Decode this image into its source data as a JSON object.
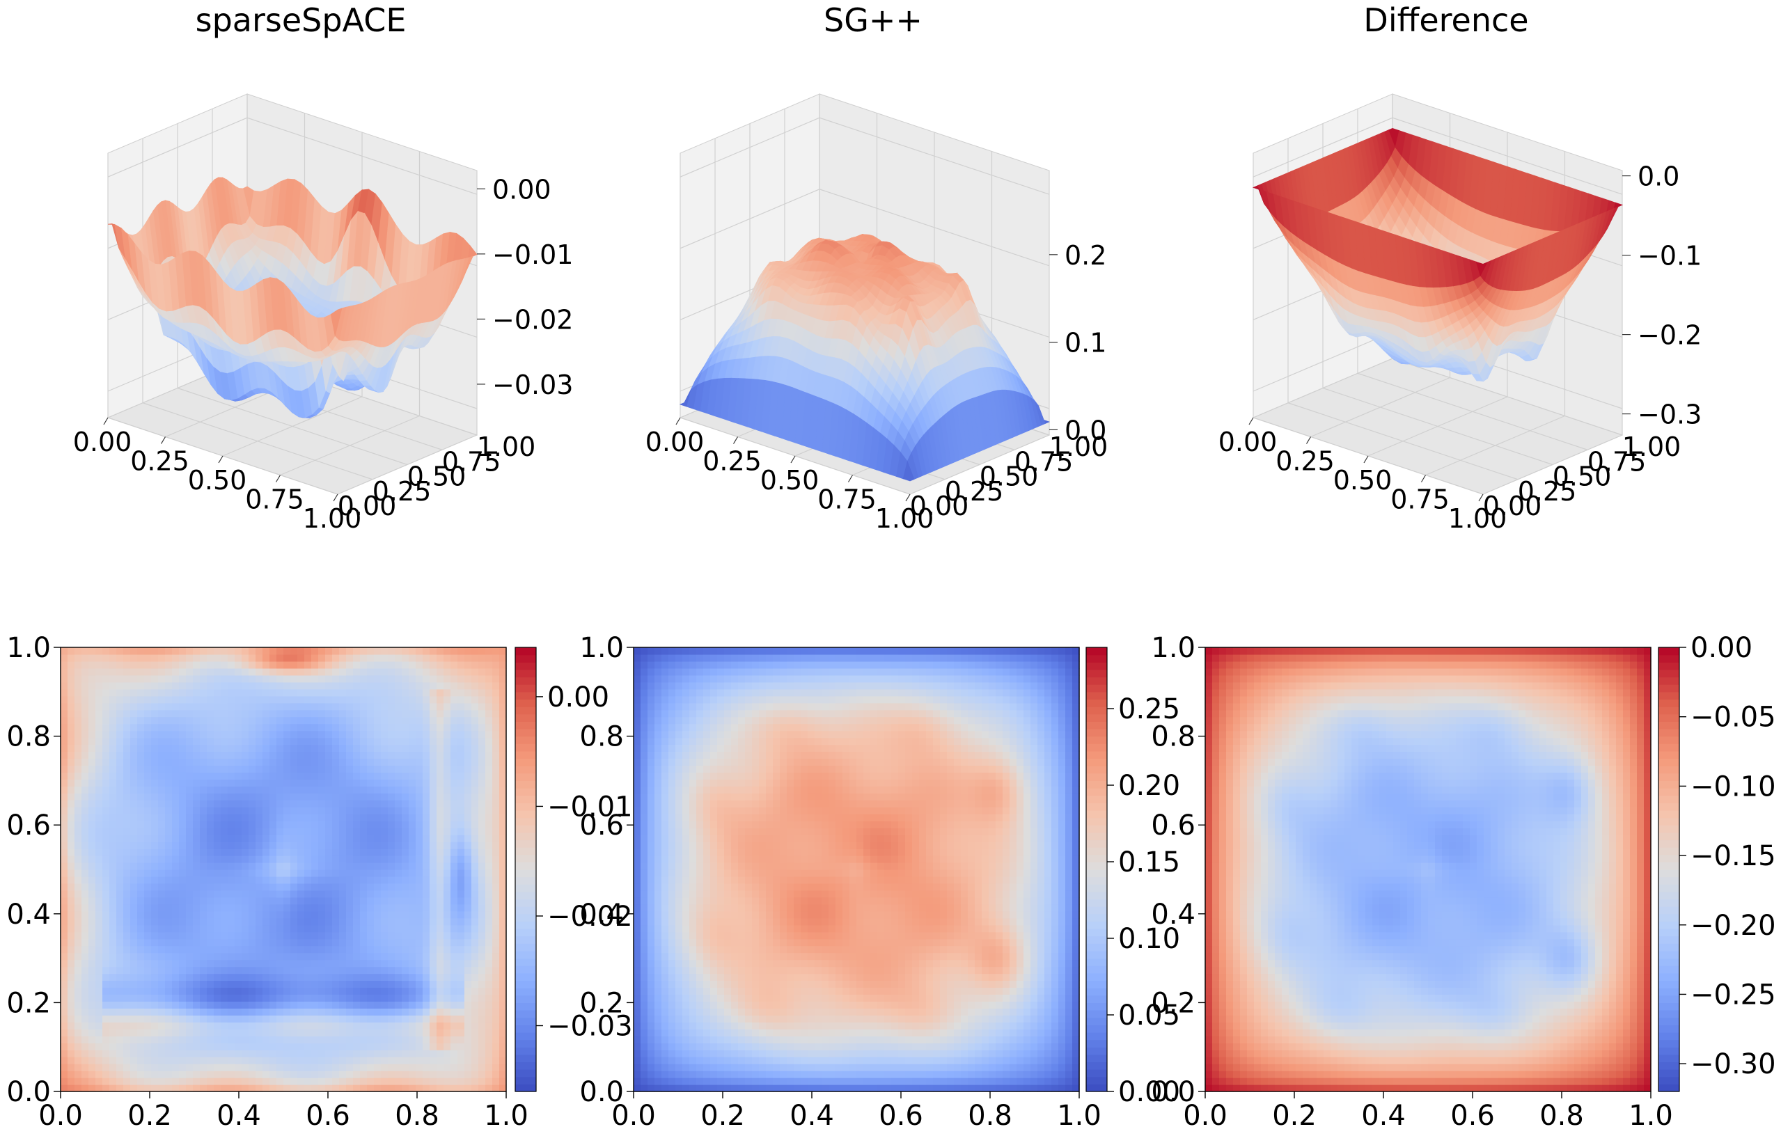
{
  "chart_data": [
    {
      "type": "surface",
      "title": "sparseSpACE",
      "x": {
        "ticks": [
          "0.00",
          "0.25",
          "0.50",
          "0.75",
          "1.00"
        ],
        "range": [
          0,
          1
        ]
      },
      "y": {
        "ticks": [
          "0.00",
          "0.25",
          "0.50",
          "0.75",
          "1.00"
        ],
        "range": [
          0,
          1
        ]
      },
      "z": {
        "ticks": [
          "0.00",
          "−0.01",
          "−0.02",
          "−0.03"
        ],
        "range": [
          -0.037,
          0.002
        ]
      },
      "surface": {
        "kind": "sparse",
        "min": -0.037,
        "max": 0.002
      },
      "colormap": "coolwarm"
    },
    {
      "type": "surface",
      "title": "SG++",
      "x": {
        "ticks": [
          "0.00",
          "0.25",
          "0.50",
          "0.75",
          "1.00"
        ],
        "range": [
          0,
          1
        ]
      },
      "y": {
        "ticks": [
          "0.00",
          "0.25",
          "0.50",
          "0.75",
          "1.00"
        ],
        "range": [
          0,
          1
        ]
      },
      "z": {
        "ticks": [
          "0.0",
          "0.1",
          "0.2"
        ],
        "range": [
          0,
          0.29
        ]
      },
      "surface": {
        "kind": "sgpp",
        "min": 0,
        "max": 0.29
      },
      "colormap": "coolwarm"
    },
    {
      "type": "surface",
      "title": "Difference",
      "x": {
        "ticks": [
          "0.00",
          "0.25",
          "0.50",
          "0.75",
          "1.00"
        ],
        "range": [
          0,
          1
        ]
      },
      "y": {
        "ticks": [
          "0.00",
          "0.25",
          "0.50",
          "0.75",
          "1.00"
        ],
        "range": [
          0,
          1
        ]
      },
      "z": {
        "ticks": [
          "0.0",
          "−0.1",
          "−0.2",
          "−0.3"
        ],
        "range": [
          -0.32,
          0
        ]
      },
      "surface": {
        "kind": "diff",
        "min": -0.32,
        "max": 0
      },
      "colormap": "coolwarm"
    },
    {
      "type": "heatmap",
      "x": {
        "ticks": [
          "0.0",
          "0.2",
          "0.4",
          "0.6",
          "0.8",
          "1.0"
        ],
        "range": [
          0,
          1
        ]
      },
      "y": {
        "ticks": [
          "0.0",
          "0.2",
          "0.4",
          "0.6",
          "0.8",
          "1.0"
        ],
        "range": [
          0,
          1
        ]
      },
      "colorbar": {
        "ticks": [
          "0.00",
          "−0.01",
          "−0.02",
          "−0.03"
        ],
        "values": [
          0,
          -0.01,
          -0.02,
          -0.03
        ],
        "range": [
          -0.036,
          0.0045
        ]
      },
      "surface": {
        "kind": "sparse"
      },
      "colormap": "coolwarm"
    },
    {
      "type": "heatmap",
      "x": {
        "ticks": [
          "0.0",
          "0.2",
          "0.4",
          "0.6",
          "0.8",
          "1.0"
        ],
        "range": [
          0,
          1
        ]
      },
      "y": {
        "ticks": [
          "0.0",
          "0.2",
          "0.4",
          "0.6",
          "0.8",
          "1.0"
        ],
        "range": [
          0,
          1
        ]
      },
      "colorbar": {
        "ticks": [
          "0.25",
          "0.20",
          "0.15",
          "0.10",
          "0.05",
          "0.00"
        ],
        "values": [
          0.25,
          0.2,
          0.15,
          0.1,
          0.05,
          0
        ],
        "range": [
          0,
          0.29
        ]
      },
      "surface": {
        "kind": "sgpp"
      },
      "colormap": "coolwarm"
    },
    {
      "type": "heatmap",
      "x": {
        "ticks": [
          "0.0",
          "0.2",
          "0.4",
          "0.6",
          "0.8",
          "1.0"
        ],
        "range": [
          0,
          1
        ]
      },
      "y": {
        "ticks": [
          "0.0",
          "0.2",
          "0.4",
          "0.6",
          "0.8",
          "1.0"
        ],
        "range": [
          0,
          1
        ]
      },
      "colorbar": {
        "ticks": [
          "0.00",
          "−0.05",
          "−0.10",
          "−0.15",
          "−0.20",
          "−0.25",
          "−0.30"
        ],
        "values": [
          0,
          -0.05,
          -0.1,
          -0.15,
          -0.2,
          -0.25,
          -0.3
        ],
        "range": [
          -0.32,
          0
        ]
      },
      "surface": {
        "kind": "diff"
      },
      "colormap": "coolwarm"
    }
  ]
}
